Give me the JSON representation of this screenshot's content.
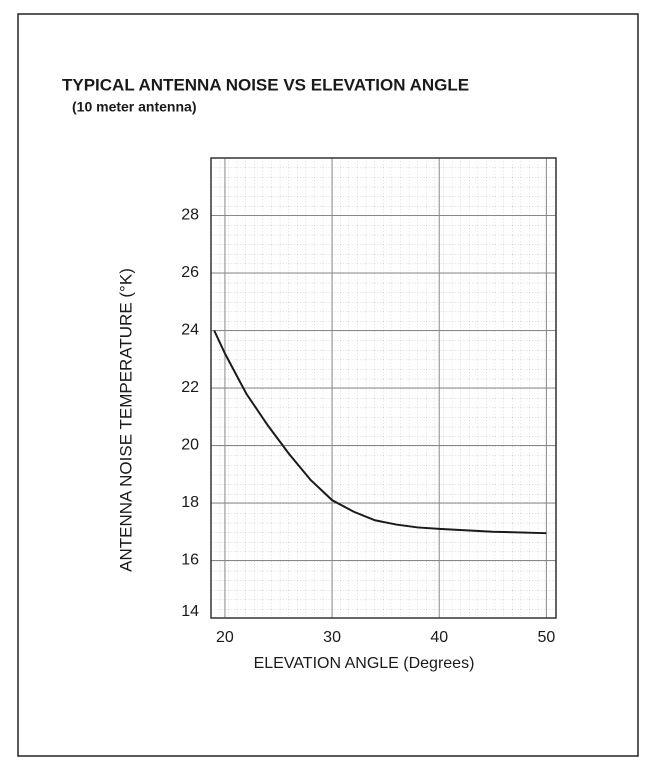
{
  "chart_data": {
    "type": "line",
    "title": "TYPICAL ANTENNA NOISE VS ELEVATION ANGLE",
    "subtitle": "(10 meter antenna)",
    "x_label": "ELEVATION ANGLE (Degrees)",
    "y_label": "ANTENNA NOISE TEMPERATURE (°K)",
    "series": [
      {
        "name": "Antenna noise",
        "color": "#1a1a1a",
        "x": [
          19,
          20,
          22,
          24,
          26,
          28,
          30,
          32,
          34,
          36,
          38,
          40,
          45,
          50
        ],
        "values": [
          24.0,
          23.2,
          21.8,
          20.7,
          19.7,
          18.8,
          18.1,
          17.7,
          17.4,
          17.25,
          17.15,
          17.1,
          17.0,
          16.95
        ]
      }
    ],
    "xlim": [
      18.7,
      50.9
    ],
    "xticks": [
      20,
      30,
      40,
      50
    ],
    "ylim": [
      14,
      30
    ],
    "yticks": [
      14,
      16,
      18,
      20,
      22,
      24,
      26,
      28
    ],
    "grid": true
  }
}
